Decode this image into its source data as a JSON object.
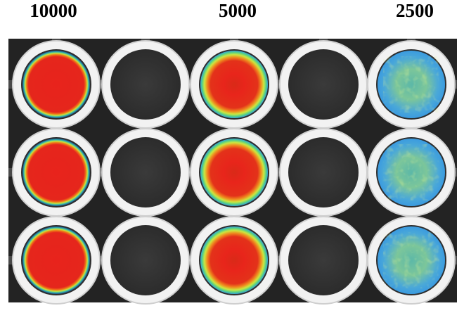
{
  "labels": [
    "10000",
    "5000",
    "2500"
  ]
}
